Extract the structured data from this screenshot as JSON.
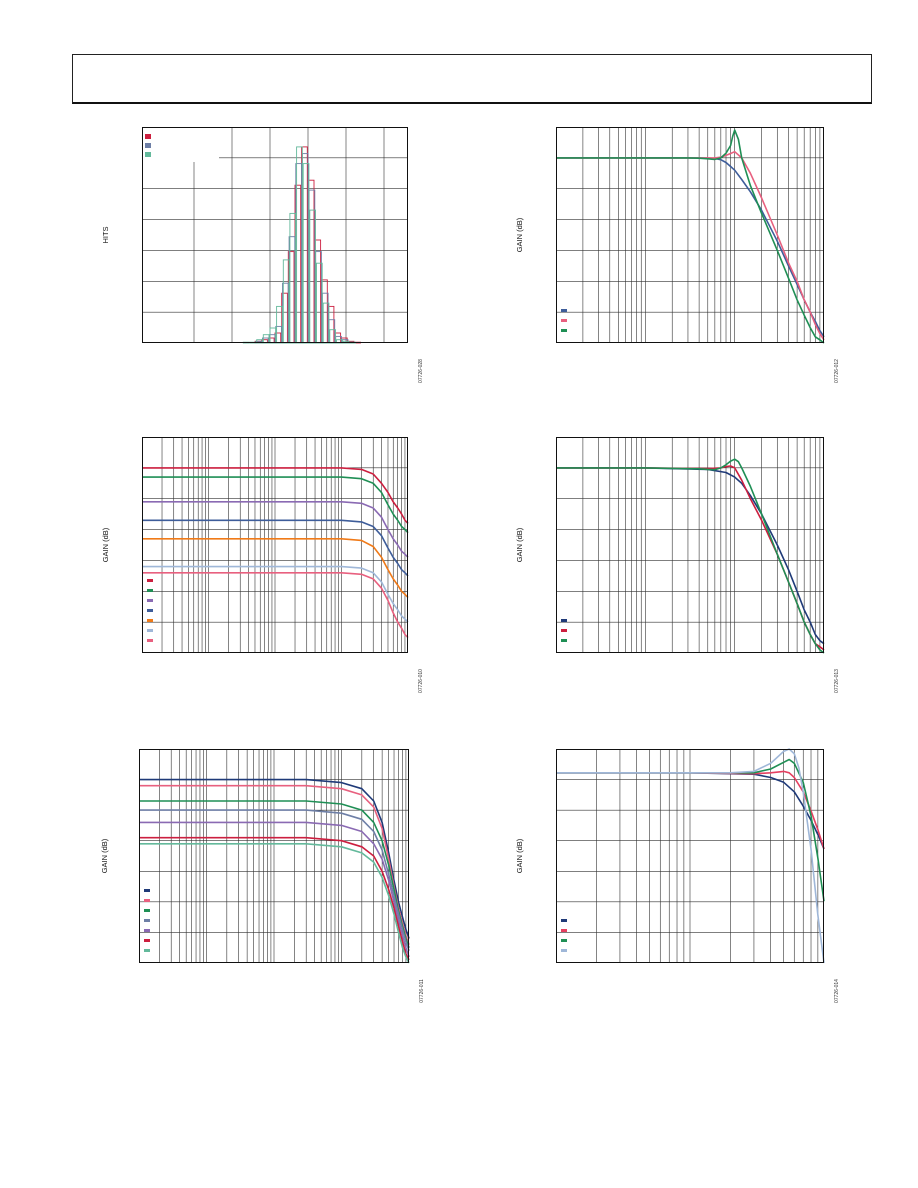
{
  "page": {
    "header_text": ""
  },
  "colors": {
    "red": "#cc1f3f",
    "navy": "#1f3a78",
    "pink": "#e8607f",
    "green": "#1f8f55",
    "purple": "#8a6ab3",
    "blue": "#3e5d9a",
    "orange": "#f07a18",
    "lightblue": "#9fb7d8",
    "teal": "#63b99b",
    "slate": "#6e7fa6"
  },
  "chart_data": [
    {
      "id": "hist",
      "type": "bar",
      "ylabel": "HITS",
      "xlabel": "",
      "code": "07726-028",
      "grid": true,
      "series": [
        {
          "color": "#cc1f3f",
          "values": [
            0,
            0,
            0,
            0,
            0,
            0,
            0,
            0,
            0,
            0,
            0,
            0,
            0,
            0,
            0,
            0,
            0,
            1,
            2,
            3,
            6,
            30,
            55,
            95,
            118,
            98,
            62,
            38,
            22,
            6,
            3,
            1,
            0.5,
            0,
            0,
            0,
            0,
            0,
            0,
            0
          ]
        },
        {
          "color": "#6e7fa6",
          "values": [
            0,
            0,
            0,
            0,
            0,
            0,
            0,
            0,
            0,
            0,
            0,
            0,
            0,
            0,
            0,
            0,
            0,
            1,
            3,
            5,
            10,
            36,
            64,
            108,
            114,
            92,
            55,
            30,
            14,
            4,
            2,
            0.5,
            0,
            0,
            0,
            0,
            0,
            0,
            0,
            0
          ]
        },
        {
          "color": "#63b99b",
          "values": [
            0,
            0,
            0,
            0,
            0,
            0,
            0,
            0,
            0,
            0,
            0,
            0,
            0,
            0,
            0,
            0.5,
            0.5,
            2,
            5,
            9,
            22,
            50,
            78,
            118,
            108,
            80,
            48,
            24,
            8,
            2,
            1,
            0.5,
            0,
            0,
            0,
            0,
            0,
            0,
            0,
            0
          ]
        }
      ],
      "ymax": 130
    },
    {
      "id": "g2",
      "type": "line",
      "ylabel": "GAIN (dB)",
      "code": "07726-012",
      "xscale": "log",
      "xdecades": 3,
      "ylim": [
        -60,
        10
      ],
      "grid": true,
      "series": [
        {
          "color": "#3e5d9a",
          "x": [
            1,
            5,
            10,
            20,
            30,
            40,
            50,
            60,
            70,
            80,
            90,
            100,
            120,
            150,
            200,
            300,
            400,
            500,
            600,
            700,
            800,
            900,
            1000
          ],
          "y": [
            0,
            0,
            0,
            0,
            0,
            0,
            0,
            -0.2,
            -0.6,
            -1.5,
            -2.8,
            -4,
            -7,
            -11,
            -17,
            -27,
            -35,
            -41,
            -46,
            -50,
            -53,
            -56,
            -58
          ]
        },
        {
          "color": "#e8607f",
          "x": [
            1,
            5,
            10,
            20,
            30,
            40,
            50,
            60,
            70,
            80,
            90,
            100,
            120,
            150,
            200,
            300,
            400,
            500,
            600,
            700,
            800,
            900,
            1000
          ],
          "y": [
            0,
            0,
            0,
            0,
            0,
            0,
            0,
            0,
            0.2,
            0.8,
            1.4,
            2,
            0,
            -5,
            -13,
            -25,
            -34,
            -40,
            -46,
            -50,
            -54,
            -57,
            -59
          ]
        },
        {
          "color": "#1f8f55",
          "x": [
            1,
            5,
            10,
            20,
            30,
            40,
            50,
            60,
            70,
            80,
            90,
            95,
            100,
            110,
            120,
            150,
            200,
            300,
            400,
            500,
            600,
            700,
            800,
            900,
            1000
          ],
          "y": [
            0,
            0,
            0,
            0,
            0,
            -0.1,
            -0.3,
            -0.5,
            0,
            1.5,
            4,
            7,
            9,
            6,
            0,
            -9,
            -18,
            -30,
            -39,
            -46,
            -51,
            -55,
            -58,
            -59,
            -60
          ]
        }
      ]
    },
    {
      "id": "g3",
      "type": "line",
      "ylabel": "GAIN (dB)",
      "code": "07726-010",
      "xscale": "log",
      "xdecades": 4,
      "ylim": [
        -60,
        10
      ],
      "grid": true,
      "series": [
        {
          "color": "#cc1f3f",
          "x": [
            1,
            10,
            100,
            1000,
            2000,
            3000,
            4000,
            5000,
            6000,
            7000,
            8000,
            9000,
            10000
          ],
          "y": [
            0,
            0,
            0,
            0,
            -0.5,
            -2,
            -5,
            -8,
            -11,
            -13,
            -15,
            -17,
            -18
          ]
        },
        {
          "color": "#1f8f55",
          "x": [
            1,
            10,
            100,
            1000,
            2000,
            3000,
            4000,
            5000,
            6000,
            7000,
            8000,
            9000,
            10000
          ],
          "y": [
            -3,
            -3,
            -3,
            -3,
            -3.5,
            -5,
            -8,
            -12,
            -15,
            -17,
            -19,
            -20,
            -21
          ]
        },
        {
          "color": "#8a6ab3",
          "x": [
            1,
            10,
            100,
            1000,
            2000,
            3000,
            4000,
            5000,
            6000,
            7000,
            8000,
            9000,
            10000
          ],
          "y": [
            -11,
            -11,
            -11,
            -11,
            -11.5,
            -13,
            -16,
            -20,
            -23,
            -25,
            -27,
            -28,
            -29
          ]
        },
        {
          "color": "#3e5d9a",
          "x": [
            1,
            10,
            100,
            1000,
            2000,
            3000,
            4000,
            5000,
            6000,
            7000,
            8000,
            9000,
            10000
          ],
          "y": [
            -17,
            -17,
            -17,
            -17,
            -17.5,
            -19,
            -22,
            -26,
            -29,
            -31,
            -33,
            -34,
            -35
          ]
        },
        {
          "color": "#f07a18",
          "x": [
            1,
            10,
            100,
            1000,
            2000,
            3000,
            4000,
            5000,
            6000,
            7000,
            8000,
            9000,
            10000
          ],
          "y": [
            -23,
            -23,
            -23,
            -23,
            -23.5,
            -25.5,
            -29,
            -33,
            -36,
            -38,
            -40,
            -41,
            -42
          ]
        },
        {
          "color": "#9fb7d8",
          "x": [
            1,
            10,
            100,
            1000,
            2000,
            3000,
            4000,
            5000,
            6000,
            7000,
            8000,
            9000,
            10000
          ],
          "y": [
            -32,
            -32,
            -32,
            -32,
            -32.5,
            -34,
            -37,
            -41,
            -44,
            -46,
            -48,
            -49,
            -50
          ]
        },
        {
          "color": "#e8607f",
          "x": [
            1,
            10,
            100,
            1000,
            2000,
            3000,
            4000,
            5000,
            6000,
            7000,
            8000,
            9000,
            10000
          ],
          "y": [
            -34,
            -34,
            -34,
            -34,
            -34.5,
            -36,
            -39,
            -43,
            -47,
            -50,
            -52,
            -54,
            -55
          ]
        }
      ]
    },
    {
      "id": "g4",
      "type": "line",
      "ylabel": "GAIN (dB)",
      "code": "07726-013",
      "xscale": "log",
      "xdecades": 3,
      "ylim": [
        -60,
        10
      ],
      "grid": true,
      "series": [
        {
          "color": "#1f3a78",
          "x": [
            1,
            10,
            50,
            80,
            100,
            120,
            150,
            200,
            300,
            400,
            500,
            600,
            700,
            800,
            900,
            1000
          ],
          "y": [
            0,
            0,
            -0.5,
            -1.5,
            -3,
            -5,
            -9,
            -15,
            -25,
            -33,
            -40,
            -46,
            -50,
            -54,
            -56,
            -57
          ]
        },
        {
          "color": "#cc1f3f",
          "x": [
            1,
            10,
            50,
            70,
            80,
            90,
            100,
            120,
            150,
            200,
            300,
            400,
            500,
            600,
            700,
            800,
            900,
            1000
          ],
          "y": [
            0,
            0,
            -0.2,
            0,
            0.4,
            0.6,
            0,
            -4,
            -10,
            -17,
            -28,
            -37,
            -44,
            -50,
            -54,
            -57,
            -58,
            -59
          ]
        },
        {
          "color": "#1f8f55",
          "x": [
            1,
            10,
            40,
            50,
            60,
            70,
            80,
            90,
            100,
            110,
            120,
            150,
            200,
            300,
            400,
            500,
            600,
            700,
            800,
            900,
            1000
          ],
          "y": [
            0,
            0,
            -0.3,
            -0.5,
            -0.6,
            0,
            1,
            2.2,
            2.8,
            2,
            0,
            -6,
            -15,
            -28,
            -37,
            -44,
            -50,
            -54,
            -57,
            -59,
            -60
          ]
        }
      ]
    },
    {
      "id": "g5",
      "type": "line",
      "ylabel": "GAIN (dB)",
      "code": "07726-011",
      "xscale": "log",
      "xdecades": 4,
      "ylim": [
        -60,
        10
      ],
      "grid": true,
      "series": [
        {
          "color": "#1f3a78",
          "x": [
            1,
            10,
            100,
            300,
            1000,
            2000,
            3000,
            4000,
            5000,
            6000,
            7000,
            8000,
            9000,
            10000
          ],
          "y": [
            0,
            0,
            0,
            0,
            -1,
            -3,
            -7,
            -14,
            -24,
            -33,
            -40,
            -45,
            -49,
            -52
          ]
        },
        {
          "color": "#e8607f",
          "x": [
            1,
            10,
            100,
            300,
            1000,
            2000,
            3000,
            4000,
            5000,
            6000,
            7000,
            8000,
            9000,
            10000
          ],
          "y": [
            -2,
            -2,
            -2,
            -2,
            -3,
            -5,
            -9,
            -16,
            -26,
            -35,
            -42,
            -47,
            -51,
            -54
          ]
        },
        {
          "color": "#1f8f55",
          "x": [
            1,
            10,
            100,
            300,
            1000,
            2000,
            3000,
            4000,
            5000,
            6000,
            7000,
            8000,
            9000,
            10000
          ],
          "y": [
            -7,
            -7,
            -7,
            -7,
            -8,
            -10,
            -14,
            -20,
            -28,
            -36,
            -43,
            -48,
            -52,
            -55
          ]
        },
        {
          "color": "#6e7fa6",
          "x": [
            1,
            10,
            100,
            300,
            1000,
            2000,
            3000,
            4000,
            5000,
            6000,
            7000,
            8000,
            9000,
            10000
          ],
          "y": [
            -10,
            -10,
            -10,
            -10,
            -11,
            -13,
            -17,
            -23,
            -31,
            -38,
            -44,
            -49,
            -53,
            -56
          ]
        },
        {
          "color": "#8a6ab3",
          "x": [
            1,
            10,
            100,
            300,
            1000,
            2000,
            3000,
            4000,
            5000,
            6000,
            7000,
            8000,
            9000,
            10000
          ],
          "y": [
            -14,
            -14,
            -14,
            -14,
            -15,
            -17,
            -21,
            -26,
            -33,
            -40,
            -46,
            -51,
            -55,
            -58
          ]
        },
        {
          "color": "#cc1f3f",
          "x": [
            1,
            10,
            100,
            300,
            1000,
            2000,
            3000,
            4000,
            5000,
            6000,
            7000,
            8000,
            9000,
            10000
          ],
          "y": [
            -19,
            -19,
            -19,
            -19,
            -20,
            -22,
            -25,
            -30,
            -36,
            -42,
            -48,
            -53,
            -57,
            -59
          ]
        },
        {
          "color": "#63b99b",
          "x": [
            1,
            10,
            100,
            300,
            1000,
            2000,
            3000,
            4000,
            5000,
            6000,
            7000,
            8000,
            9000,
            10000
          ],
          "y": [
            -21,
            -21,
            -21,
            -21,
            -22,
            -24,
            -27,
            -32,
            -38,
            -44,
            -50,
            -55,
            -58,
            -60
          ]
        }
      ]
    },
    {
      "id": "g6",
      "type": "line",
      "ylabel": "GAIN (dB)",
      "code": "07726-014",
      "xscale": "log",
      "xdecades": 2,
      "ylim": [
        -40,
        5
      ],
      "grid": true,
      "series": [
        {
          "color": "#1f3a78",
          "x": [
            1,
            10,
            30,
            40,
            50,
            60,
            70,
            80,
            90,
            100
          ],
          "y": [
            0,
            0,
            -0.3,
            -1,
            -2,
            -4,
            -7,
            -10,
            -13,
            -16
          ]
        },
        {
          "color": "#e54060",
          "x": [
            1,
            10,
            30,
            40,
            50,
            55,
            60,
            70,
            80,
            90,
            100
          ],
          "y": [
            0,
            0,
            -0.2,
            0,
            0.3,
            0,
            -1,
            -4,
            -8,
            -12,
            -16
          ]
        },
        {
          "color": "#1f8f55",
          "x": [
            1,
            10,
            30,
            40,
            50,
            55,
            60,
            70,
            80,
            90,
            100
          ],
          "y": [
            0,
            0,
            0,
            0.8,
            2.2,
            2.8,
            2,
            -2,
            -9,
            -18,
            -27
          ]
        },
        {
          "color": "#9fb7d8",
          "x": [
            1,
            10,
            20,
            30,
            40,
            50,
            55,
            60,
            65,
            70,
            80,
            90,
            100
          ],
          "y": [
            0,
            0,
            0,
            0.3,
            2,
            4.5,
            5,
            4,
            1,
            -4,
            -16,
            -30,
            -40
          ]
        }
      ]
    }
  ]
}
